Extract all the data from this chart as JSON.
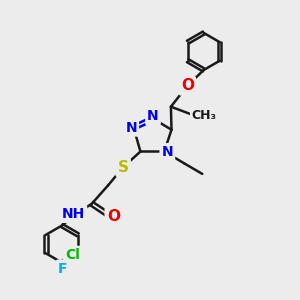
{
  "bg_color": "#ececec",
  "line_color": "#1a1a1a",
  "bond_width": 1.8,
  "N_color": "#0000ee",
  "O_color": "#ee0000",
  "S_color": "#bbbb00",
  "Cl_color": "#00bb00",
  "F_color": "#00aaff",
  "font_size": 10,
  "fig_size": [
    3.0,
    3.0
  ],
  "dpi": 100,
  "xlim": [
    0,
    10
  ],
  "ylim": [
    0,
    10
  ]
}
